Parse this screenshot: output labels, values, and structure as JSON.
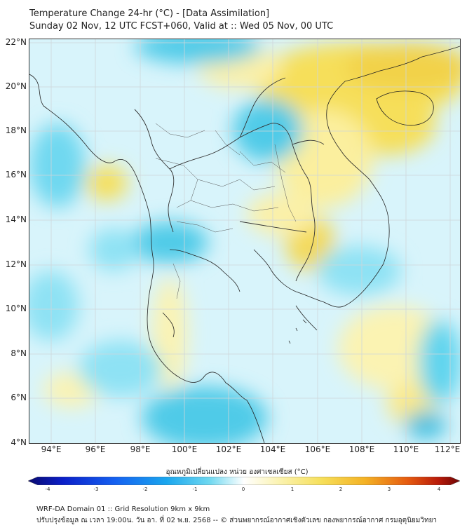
{
  "title_line1": "Temperature Change 24-hr (°C) - [Data Assimilation]",
  "title_line2": "Sunday 02 Nov, 12 UTC FCST+060, Valid at :: Wed 05 Nov, 00 UTC",
  "lat_labels": [
    "22°N",
    "20°N",
    "18°N",
    "16°N",
    "14°N",
    "12°N",
    "10°N",
    "8°N",
    "6°N",
    "4°N"
  ],
  "lon_labels": [
    "94°E",
    "96°E",
    "98°E",
    "100°E",
    "102°E",
    "104°E",
    "106°E",
    "108°E",
    "110°E",
    "112°E"
  ],
  "colorbar": {
    "title": "อุณหภูมิเปลี่ยนแปลง หน่วย องศาเซลเซียส (°C)",
    "ticks": [
      "-4",
      "-3",
      "-2",
      "-1",
      "0",
      "1",
      "2",
      "3",
      "4"
    ],
    "min": -4,
    "max": 4
  },
  "footer_line1": "WRF-DA Domain 01 :: Grid Resolution 9km x 9km",
  "footer_line2": "ปรับปรุงข้อมูล ณ เวลา 19:00น. วัน อา. ที่ 02 พ.ย. 2568 -- © ส่วนพยากรณ์อากาศเชิงตัวเลข กองพยากรณ์อากาศ กรมอุตุนิยมวิทยา",
  "colors": {
    "cool": "#5fd4ee",
    "cool_light": "#bdeefa",
    "warm": "#f6df5a",
    "warm_light": "#fbf3b2"
  }
}
